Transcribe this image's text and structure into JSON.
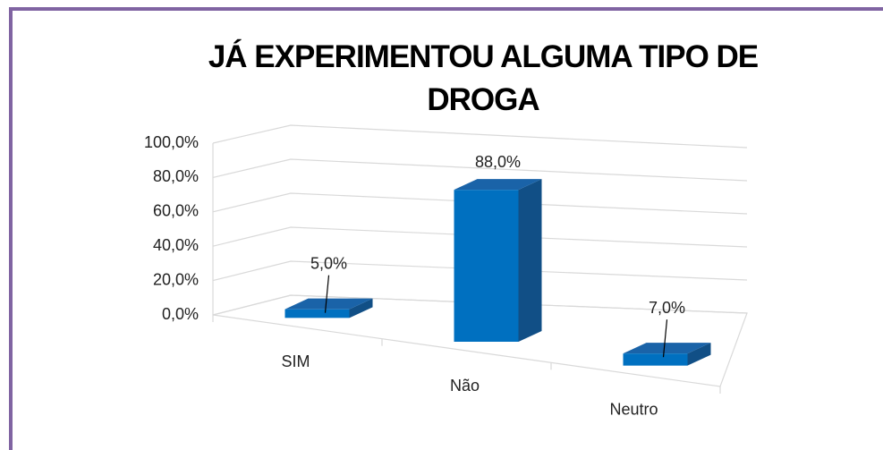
{
  "chart_data": {
    "type": "bar3d",
    "title": "JÁ EXPERIMENTOU ALGUMA TIPO DE DROGA",
    "categories": [
      "SIM",
      "Não",
      "Neutro"
    ],
    "values": [
      5,
      88,
      7
    ],
    "value_labels": [
      "5,0%",
      "88,0%",
      "7,0%"
    ],
    "color": "#0070c0",
    "ylim": [
      0,
      100
    ],
    "yticks": [
      {
        "value": 0,
        "label": "0,0%"
      },
      {
        "value": 20,
        "label": "20,0%"
      },
      {
        "value": 40,
        "label": "40,0%"
      },
      {
        "value": 60,
        "label": "60,0%"
      },
      {
        "value": 80,
        "label": "80,0%"
      },
      {
        "value": 100,
        "label": "100,0%"
      }
    ],
    "grid": true
  }
}
